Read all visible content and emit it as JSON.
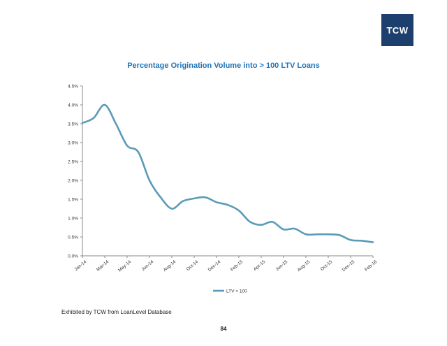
{
  "logo": {
    "text": "TCW",
    "color": "#1c3f6e"
  },
  "source_note": "Exhibited by TCW from LoanLevel Database",
  "page_number": "84",
  "chart_data": {
    "type": "line",
    "title": "Percentage Origination Volume into > 100 LTV Loans",
    "xlabel": "",
    "ylabel": "",
    "ylim": [
      0,
      4.5
    ],
    "y_ticks": [
      "0.0%",
      "0.5%",
      "1.0%",
      "1.5%",
      "2.0%",
      "2.5%",
      "3.0%",
      "3.5%",
      "4.0%",
      "4.5%"
    ],
    "x_tick_labels": [
      "Jan-14",
      "Mar-14",
      "May-14",
      "Jun-14",
      "Aug-14",
      "Oct-14",
      "Dec-14",
      "Feb-15",
      "Apr-15",
      "Jun-15",
      "Aug-15",
      "Oct-15",
      "Dec-15",
      "Feb-16"
    ],
    "grid": false,
    "legend_position": "bottom",
    "series": [
      {
        "name": "LTV > 100",
        "color": "#5b9bb8",
        "values": [
          3.52,
          3.65,
          4.0,
          3.5,
          2.92,
          2.75,
          2.0,
          1.55,
          1.25,
          1.45,
          1.52,
          1.55,
          1.42,
          1.35,
          1.2,
          0.9,
          0.82,
          0.9,
          0.7,
          0.72,
          0.57,
          0.57,
          0.57,
          0.55,
          0.42,
          0.4,
          0.36
        ]
      }
    ]
  }
}
